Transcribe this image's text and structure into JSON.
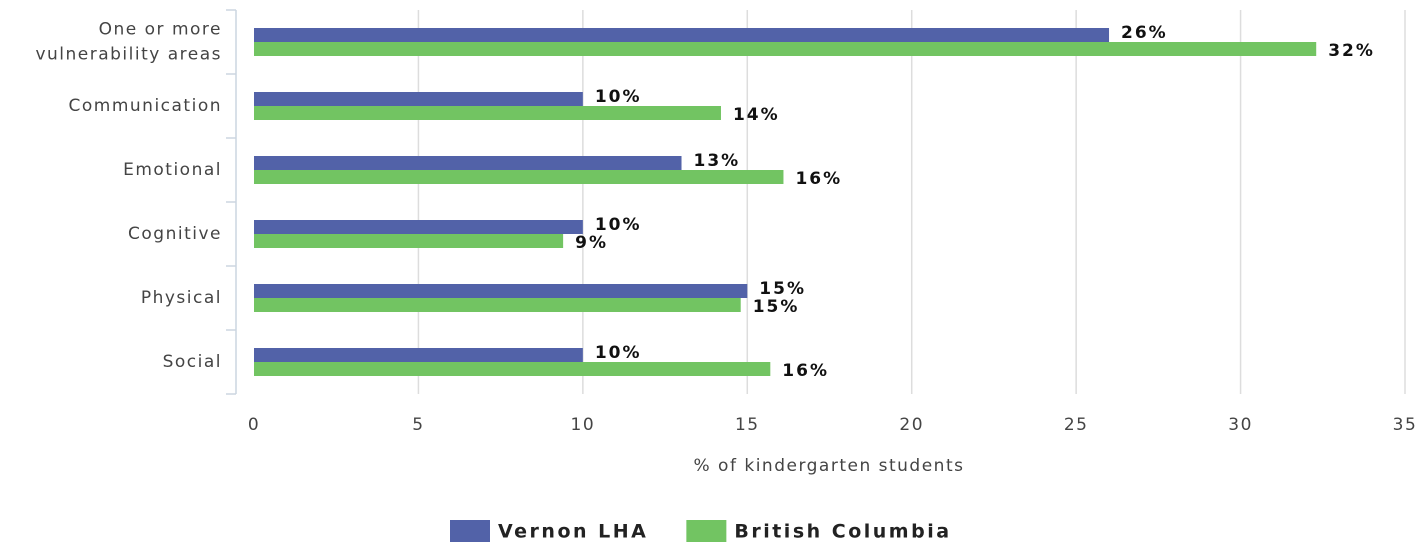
{
  "chart_data": {
    "type": "bar",
    "orientation": "horizontal",
    "categories": [
      "One or more vulnerability areas",
      "Communication",
      "Emotional",
      "Cognitive",
      "Physical",
      "Social"
    ],
    "series": [
      {
        "name": "Vernon LHA",
        "color": "#5262a8",
        "values": [
          26,
          10,
          13,
          10,
          15,
          10
        ],
        "value_labels": [
          "26%",
          "10%",
          "13%",
          "10%",
          "15%",
          "10%"
        ]
      },
      {
        "name": "British Columbia",
        "color": "#72c462",
        "values": [
          32.3,
          14.2,
          16.1,
          9.4,
          14.8,
          15.7
        ],
        "value_labels": [
          "32%",
          "14%",
          "16%",
          "9%",
          "15%",
          "16%"
        ]
      }
    ],
    "xlabel": "% of kindergarten students",
    "xlim": [
      0,
      35
    ],
    "xticks": [
      0,
      5,
      10,
      15,
      20,
      25,
      30,
      35
    ],
    "grid": true,
    "legend": "bottom"
  }
}
